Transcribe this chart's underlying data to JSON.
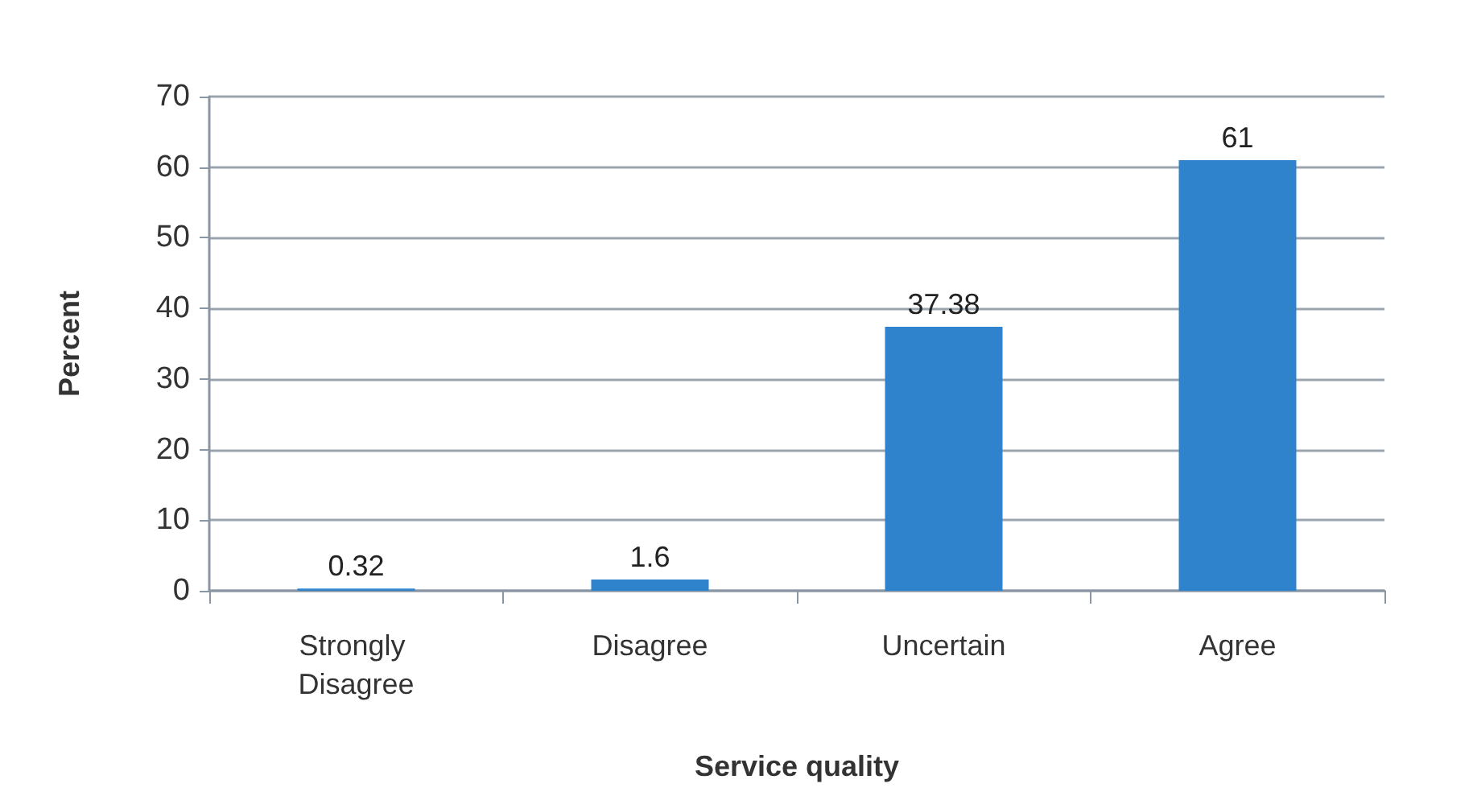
{
  "chart_data": {
    "type": "bar",
    "xlabel": "Service quality",
    "ylabel": "Percent",
    "categories": [
      "Strongly Disagree",
      "Disagree",
      "Uncertain",
      "Agree"
    ],
    "values": [
      0.32,
      1.6,
      37.38,
      61
    ],
    "color": "#2e83cc",
    "ylim": [
      0,
      70
    ],
    "yticks": [
      0,
      10,
      20,
      30,
      40,
      50,
      60,
      70
    ],
    "grid": "y",
    "data_labels": true
  }
}
